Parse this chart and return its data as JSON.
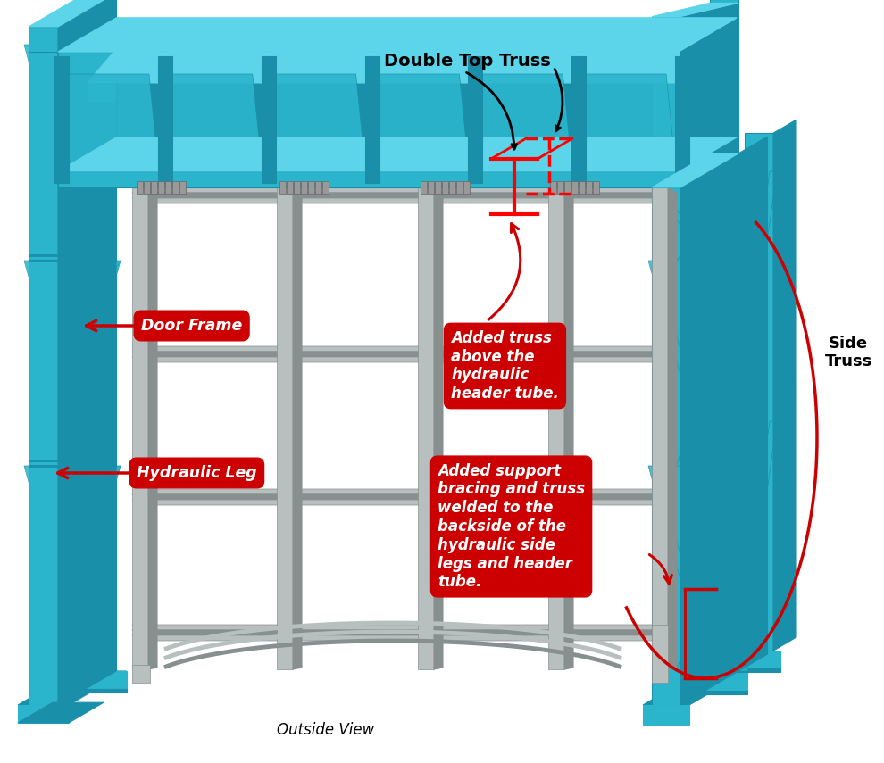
{
  "bg_color": "#ffffff",
  "sc": "#2ab5cc",
  "sd": "#1a8faa",
  "sl": "#5cd5ea",
  "fc": "#b8bfbf",
  "fd": "#888f8f",
  "fe": "#d0d8d8",
  "red": "#cc0000",
  "ann_double_top_truss": "Double Top Truss",
  "ann_side_truss": "Side\nTruss",
  "ann_outside_view": "Outside View",
  "ann_door_frame": "Door Frame",
  "ann_hydraulic_leg": "Hydraulic Leg",
  "ann_box1": "Added truss\nabove the\nhydraulic\nheader tube.",
  "ann_box2": "Added support\nbracing and truss\nwelded to the\nbackside of the\nhydraulic side\nlegs and header\ntube."
}
